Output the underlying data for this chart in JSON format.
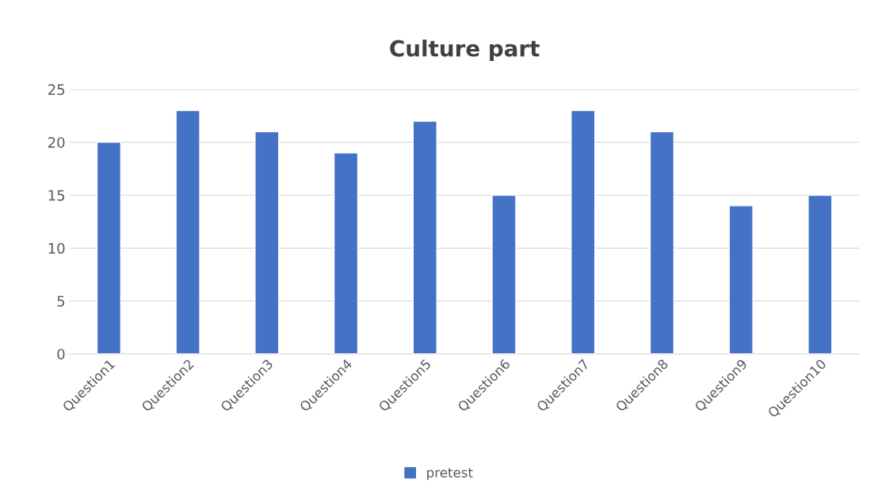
{
  "chart_data": {
    "type": "bar",
    "title": "Culture part",
    "categories": [
      "Question1",
      "Question2",
      "Question3",
      "Question4",
      "Question5",
      "Question6",
      "Question7",
      "Question8",
      "Question9",
      "Question10"
    ],
    "series": [
      {
        "name": "pretest",
        "color": "#4472c4",
        "values": [
          20,
          23,
          21,
          19,
          22,
          15,
          23,
          21,
          14,
          15
        ]
      }
    ],
    "ylim": [
      0,
      25
    ],
    "yticks": [
      0,
      5,
      10,
      15,
      20,
      25
    ],
    "grid": "y",
    "legend": "bottom"
  }
}
